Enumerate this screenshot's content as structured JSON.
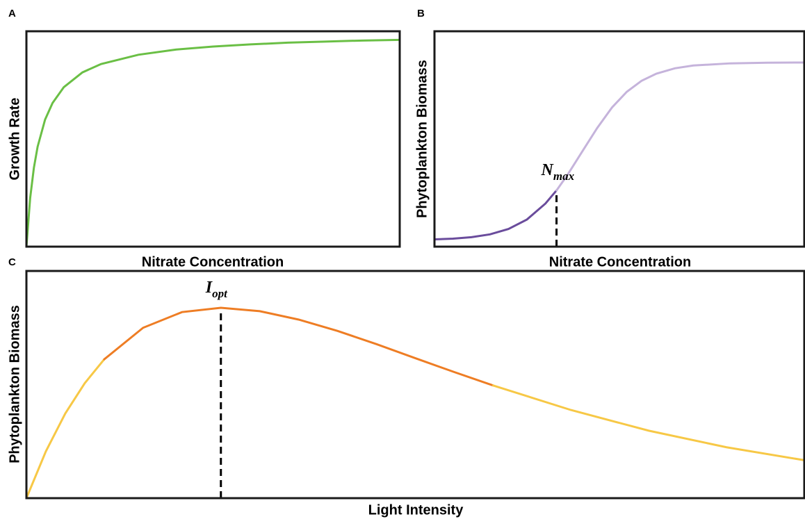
{
  "chart_data": [
    {
      "type": "line",
      "panel_label": "A",
      "x_label": "Nitrate Concentration",
      "y_label": "Growth Rate",
      "xlim": [
        0,
        100
      ],
      "ylim": [
        0,
        100
      ],
      "series": [
        {
          "color": "#6abf45",
          "x": [
            0,
            1,
            2,
            3,
            5,
            7,
            10,
            15,
            20,
            30,
            40,
            50,
            60,
            70,
            80,
            90,
            100
          ],
          "values": [
            0,
            22.5,
            36.6,
            46.4,
            59.0,
            66.7,
            74.0,
            80.9,
            84.8,
            89.1,
            91.5,
            92.9,
            93.9,
            94.7,
            95.2,
            95.7,
            96.0
          ]
        }
      ]
    },
    {
      "type": "line",
      "panel_label": "B",
      "x_label": "Nitrate Concentration",
      "y_label": "Phytoplankton Biomass",
      "xlim": [
        0,
        100
      ],
      "ylim": [
        0,
        100
      ],
      "series": [
        {
          "color": "#6a4c9c",
          "x": [
            0,
            5,
            10,
            15,
            20,
            25,
            30,
            33
          ],
          "values": [
            3.4,
            3.7,
            4.4,
            5.7,
            8.2,
            12.6,
            20.0,
            26.1
          ]
        },
        {
          "color": "#c5b3db",
          "x": [
            33,
            36,
            40,
            44,
            48,
            52,
            56,
            60,
            65,
            70,
            80,
            90,
            100
          ],
          "values": [
            26.1,
            33.4,
            44.3,
            55.1,
            64.6,
            71.9,
            77.0,
            80.3,
            82.8,
            84.1,
            85.1,
            85.4,
            85.5
          ]
        }
      ],
      "markers": [
        {
          "x": 33,
          "y": 26.1,
          "label": "N",
          "label_sub": "max"
        }
      ]
    },
    {
      "type": "line",
      "panel_label": "C",
      "x_label": "Light Intensity",
      "y_label": "Phytoplankton Biomass",
      "xlim": [
        0,
        100
      ],
      "ylim": [
        0,
        100
      ],
      "series": [
        {
          "color": "#f7c846",
          "x": [
            0,
            2.5,
            5,
            7.5,
            10
          ],
          "values": [
            0,
            20.6,
            37.3,
            50.6,
            61.1
          ]
        },
        {
          "color": "#ee7d24",
          "x": [
            10,
            15,
            20,
            25,
            30,
            35,
            40,
            45,
            50,
            55,
            60
          ],
          "values": [
            61.1,
            75.0,
            81.9,
            83.8,
            82.3,
            78.6,
            73.6,
            67.8,
            61.6,
            55.5,
            49.6
          ]
        },
        {
          "color": "#f7c846",
          "x": [
            60,
            70,
            80,
            90,
            100
          ],
          "values": [
            49.6,
            38.8,
            29.7,
            22.4,
            16.7
          ]
        }
      ],
      "markers": [
        {
          "x": 25,
          "y": 83.8,
          "label": "I",
          "label_sub": "opt"
        }
      ]
    }
  ]
}
